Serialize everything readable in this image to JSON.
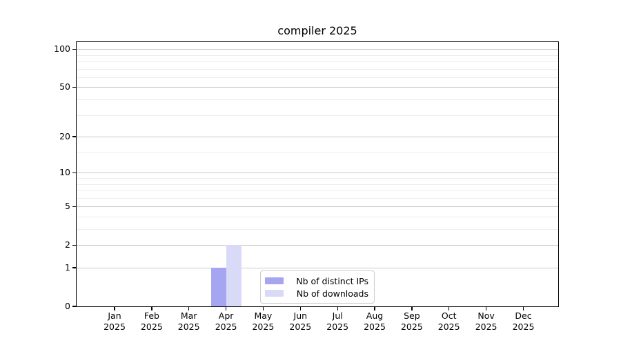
{
  "chart_data": {
    "type": "bar",
    "title": "compiler 2025",
    "months": [
      "Jan",
      "Feb",
      "Mar",
      "Apr",
      "May",
      "Jun",
      "Jul",
      "Aug",
      "Sep",
      "Oct",
      "Nov",
      "Dec"
    ],
    "year": "2025",
    "series": [
      {
        "name": "Nb of distinct IPs",
        "color": "#a5a5f2",
        "values": [
          0,
          0,
          0,
          1,
          0,
          0,
          0,
          0,
          0,
          0,
          0,
          0
        ]
      },
      {
        "name": "Nb of downloads",
        "color": "#d9d9f8",
        "values": [
          0,
          0,
          0,
          2,
          0,
          0,
          0,
          0,
          0,
          0,
          0,
          0
        ]
      }
    ],
    "y_axis": {
      "scale": "log10(value+1)",
      "major_ticks": [
        0,
        1,
        2,
        5,
        10,
        20,
        50,
        100
      ],
      "minor_ticks": [
        3,
        4,
        6,
        7,
        8,
        9,
        15,
        30,
        40,
        60,
        70,
        80,
        90
      ],
      "max_value": 115
    },
    "legend": {
      "position": "lower center",
      "entries": [
        "Nb of distinct IPs",
        "Nb of downloads"
      ]
    },
    "colors": {
      "major_grid": "#c9c9c9",
      "minor_grid": "#ededed",
      "spine": "#000000",
      "text": "#000000"
    }
  }
}
